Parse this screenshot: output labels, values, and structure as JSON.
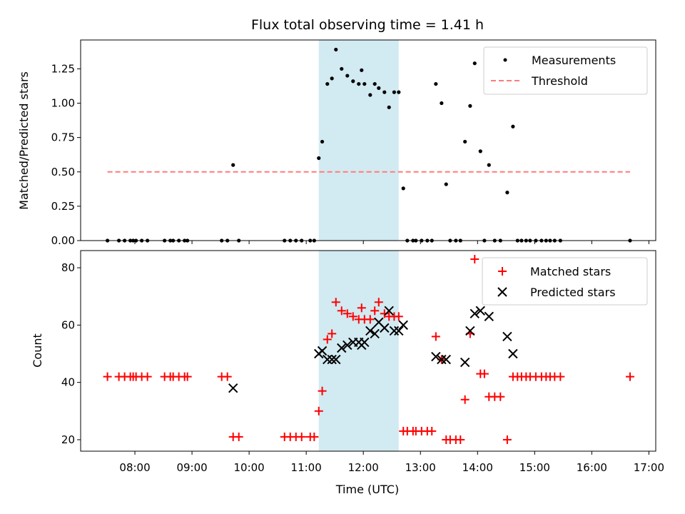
{
  "chart_data": {
    "type": "scatter",
    "title": "Flux total observing time = 1.41 h",
    "xlabel": "Time (UTC)",
    "x_unit": "hours (UTC)",
    "xlim": [
      7.05,
      17.12
    ],
    "x_ticks": [
      {
        "value": 8,
        "label": "08:00"
      },
      {
        "value": 9,
        "label": "09:00"
      },
      {
        "value": 10,
        "label": "10:00"
      },
      {
        "value": 11,
        "label": "11:00"
      },
      {
        "value": 12,
        "label": "12:00"
      },
      {
        "value": 13,
        "label": "13:00"
      },
      {
        "value": 14,
        "label": "14:00"
      },
      {
        "value": 15,
        "label": "15:00"
      },
      {
        "value": 16,
        "label": "16:00"
      },
      {
        "value": 17,
        "label": "17:00"
      }
    ],
    "shaded_span": {
      "x_start": 11.22,
      "x_end": 12.62,
      "color": "#add8e6"
    },
    "panels": [
      {
        "name": "ratio",
        "ylabel": "Matched/Predicted stars",
        "ylim": [
          0,
          1.46
        ],
        "y_ticks": [
          {
            "value": 0,
            "label": "0.00"
          },
          {
            "value": 0.25,
            "label": "0.25"
          },
          {
            "value": 0.5,
            "label": "0.50"
          },
          {
            "value": 0.75,
            "label": "0.75"
          },
          {
            "value": 1.0,
            "label": "1.00"
          },
          {
            "value": 1.25,
            "label": "1.25"
          }
        ],
        "legend": {
          "placement": "top-right",
          "entries": [
            "Measurements",
            "Threshold"
          ]
        },
        "series": [
          {
            "name": "Measurements",
            "marker": "dot",
            "color": "#000000",
            "x": [
              7.52,
              7.72,
              7.82,
              7.92,
              7.97,
              8.02,
              8.12,
              8.22,
              8.52,
              8.62,
              8.67,
              8.77,
              8.87,
              8.92,
              9.52,
              9.62,
              9.72,
              9.82,
              10.62,
              10.72,
              10.82,
              10.92,
              11.07,
              11.14,
              11.22,
              11.28,
              11.37,
              11.45,
              11.52,
              11.62,
              11.72,
              11.82,
              11.92,
              11.97,
              12.02,
              12.12,
              12.2,
              12.27,
              12.37,
              12.45,
              12.54,
              12.62,
              12.7,
              12.77,
              12.87,
              12.92,
              13.02,
              13.12,
              13.2,
              13.27,
              13.37,
              13.45,
              13.52,
              13.62,
              13.7,
              13.78,
              13.87,
              13.95,
              14.05,
              14.12,
              14.2,
              14.3,
              14.4,
              14.52,
              14.62,
              14.7,
              14.77,
              14.85,
              14.92,
              15.02,
              15.12,
              15.2,
              15.27,
              15.35,
              15.45,
              16.67
            ],
            "y": [
              0,
              0,
              0,
              0,
              0,
              0,
              0,
              0,
              0,
              0,
              0,
              0,
              0,
              0,
              0,
              0,
              0.55,
              0,
              0,
              0,
              0,
              0,
              0,
              0,
              0.6,
              0.72,
              1.14,
              1.18,
              1.39,
              1.25,
              1.2,
              1.16,
              1.14,
              1.24,
              1.14,
              1.06,
              1.14,
              1.11,
              1.08,
              0.97,
              1.08,
              1.08,
              0.38,
              0,
              0,
              0,
              0,
              0,
              0,
              1.14,
              1.0,
              0.41,
              0,
              0,
              0,
              0.72,
              0.98,
              1.29,
              0.65,
              0,
              0.55,
              0,
              0,
              0.35,
              0.83,
              0,
              0,
              0,
              0,
              0,
              0,
              0,
              0,
              0,
              0,
              0
            ]
          },
          {
            "name": "Threshold",
            "marker": "dashed-line",
            "color": "#ff7b7b",
            "x": [
              7.52,
              16.67
            ],
            "y": [
              0.5,
              0.5
            ]
          }
        ]
      },
      {
        "name": "count",
        "ylabel": "Count",
        "ylim": [
          16,
          86
        ],
        "y_ticks": [
          {
            "value": 20,
            "label": "20"
          },
          {
            "value": 40,
            "label": "40"
          },
          {
            "value": 60,
            "label": "60"
          },
          {
            "value": 80,
            "label": "80"
          }
        ],
        "legend": {
          "placement": "top-right",
          "entries": [
            "Matched stars",
            "Predicted stars"
          ]
        },
        "series": [
          {
            "name": "Matched stars",
            "marker": "plus",
            "color": "#ff0000",
            "x": [
              7.52,
              7.72,
              7.82,
              7.92,
              7.97,
              8.02,
              8.12,
              8.22,
              8.52,
              8.62,
              8.67,
              8.77,
              8.87,
              8.92,
              9.52,
              9.62,
              9.72,
              9.82,
              10.62,
              10.72,
              10.82,
              10.92,
              11.07,
              11.14,
              11.22,
              11.28,
              11.37,
              11.45,
              11.52,
              11.62,
              11.72,
              11.82,
              11.92,
              11.97,
              12.02,
              12.12,
              12.2,
              12.27,
              12.37,
              12.45,
              12.54,
              12.62,
              12.7,
              12.77,
              12.87,
              12.92,
              13.02,
              13.12,
              13.2,
              13.27,
              13.37,
              13.45,
              13.52,
              13.62,
              13.7,
              13.78,
              13.87,
              13.95,
              14.05,
              14.12,
              14.2,
              14.3,
              14.4,
              14.52,
              14.62,
              14.7,
              14.77,
              14.85,
              14.92,
              15.02,
              15.12,
              15.2,
              15.27,
              15.35,
              15.45,
              16.67
            ],
            "y": [
              42,
              42,
              42,
              42,
              42,
              42,
              42,
              42,
              42,
              42,
              42,
              42,
              42,
              42,
              42,
              42,
              21,
              21,
              21,
              21,
              21,
              21,
              21,
              21,
              30,
              37,
              55,
              57,
              68,
              65,
              64,
              63,
              62,
              66,
              62,
              62,
              65,
              68,
              64,
              63,
              63,
              63,
              23,
              23,
              23,
              23,
              23,
              23,
              23,
              56,
              48,
              20,
              20,
              20,
              20,
              34,
              57,
              83,
              43,
              43,
              35,
              35,
              35,
              20,
              42,
              42,
              42,
              42,
              42,
              42,
              42,
              42,
              42,
              42,
              42,
              42
            ]
          },
          {
            "name": "Predicted stars",
            "marker": "x",
            "color": "#000000",
            "x": [
              9.72,
              11.22,
              11.28,
              11.37,
              11.45,
              11.52,
              11.62,
              11.72,
              11.82,
              11.92,
              11.97,
              12.02,
              12.12,
              12.2,
              12.27,
              12.37,
              12.45,
              12.54,
              12.62,
              12.7,
              13.27,
              13.37,
              13.45,
              13.78,
              13.87,
              13.95,
              14.05,
              14.2,
              14.52,
              14.62
            ],
            "y": [
              38,
              50,
              51,
              48,
              48,
              48,
              52,
              53,
              54,
              54,
              53,
              54,
              58,
              57,
              61,
              59,
              65,
              58,
              58,
              60,
              49,
              48,
              48,
              47,
              58,
              64,
              65,
              63,
              56,
              50
            ]
          }
        ]
      }
    ]
  }
}
